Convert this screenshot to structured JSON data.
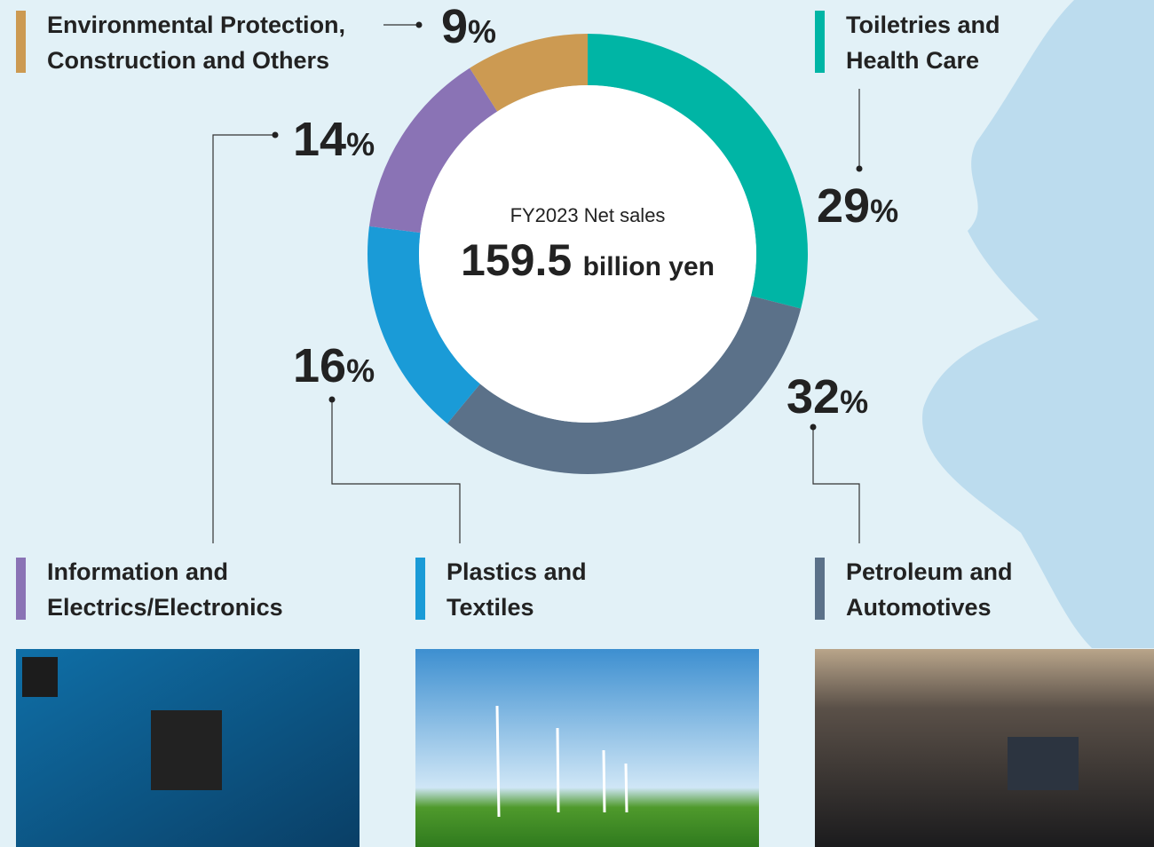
{
  "chart_data": {
    "type": "donut",
    "center_title": "FY2023 Net sales",
    "total": 159.5,
    "total_unit": "billion yen",
    "categories": [
      "Toiletries and Health Care",
      "Petroleum and Automotives",
      "Plastics and Textiles",
      "Information and Electrics/Electronics",
      "Environmental Protection, Construction and Others"
    ],
    "values": [
      29,
      32,
      16,
      14,
      9
    ],
    "value_labels": [
      "29%",
      "32%",
      "16%",
      "14%",
      "9%"
    ],
    "colors": [
      "#00b5a5",
      "#5b7189",
      "#1a9bd7",
      "#8a73b5",
      "#cc9a52"
    ]
  }
}
